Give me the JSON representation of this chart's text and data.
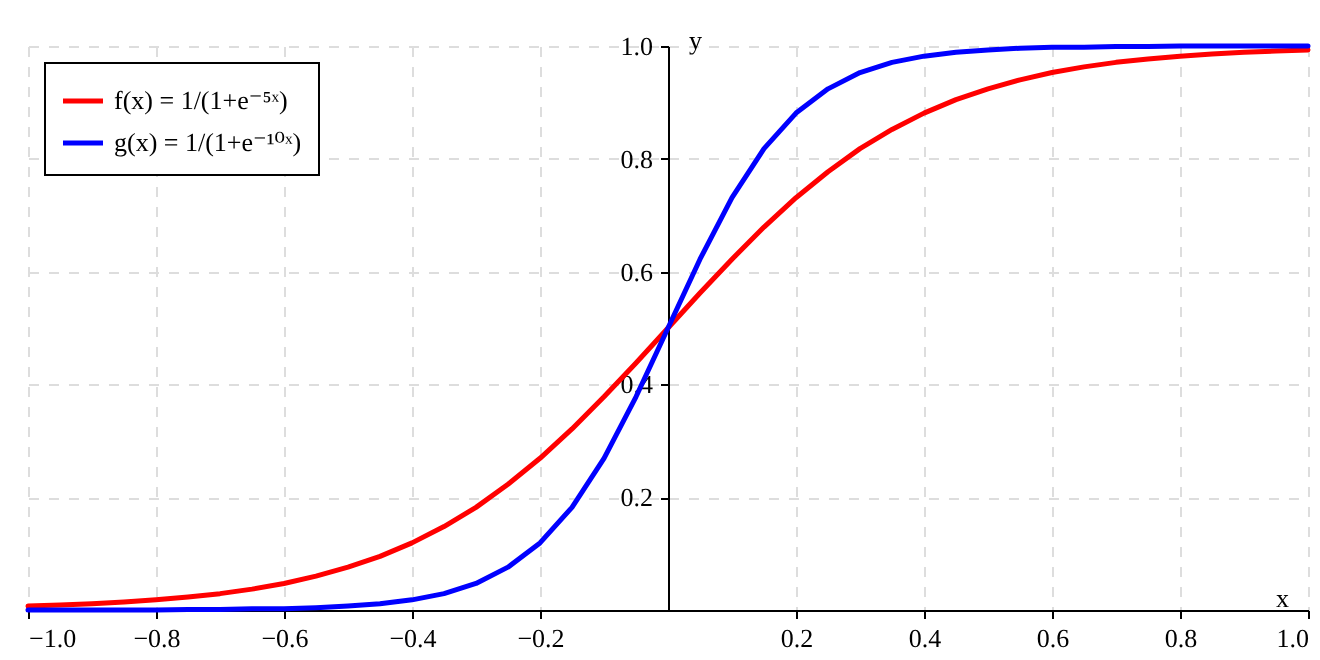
{
  "chart_data": {
    "type": "line",
    "xlabel": "x",
    "ylabel": "y",
    "x": [
      -1,
      -0.95,
      -0.9,
      -0.85,
      -0.8,
      -0.75,
      -0.7,
      -0.65,
      -0.6,
      -0.55,
      -0.5,
      -0.45,
      -0.4,
      -0.35,
      -0.3,
      -0.25,
      -0.2,
      -0.15,
      -0.1,
      -0.05,
      0,
      0.05,
      0.1,
      0.15,
      0.2,
      0.25,
      0.3,
      0.35,
      0.4,
      0.45,
      0.5,
      0.55,
      0.6,
      0.65,
      0.7,
      0.75,
      0.8,
      0.85,
      0.9,
      0.95,
      1
    ],
    "series": [
      {
        "name": "f(x) = 1/(1+e⁻⁵ˣ)",
        "color": "#ff0000",
        "values": [
          0.007,
          0.009,
          0.011,
          0.014,
          0.018,
          0.023,
          0.029,
          0.037,
          0.047,
          0.06,
          0.076,
          0.095,
          0.119,
          0.148,
          0.182,
          0.223,
          0.269,
          0.321,
          0.378,
          0.438,
          0.5,
          0.562,
          0.622,
          0.679,
          0.731,
          0.777,
          0.818,
          0.852,
          0.881,
          0.905,
          0.924,
          0.94,
          0.953,
          0.963,
          0.971,
          0.977,
          0.982,
          0.986,
          0.989,
          0.991,
          0.993
        ]
      },
      {
        "name": "g(x) = 1/(1+e⁻¹⁰ˣ)",
        "color": "#0000ff",
        "values": [
          0.0,
          0.0,
          0.0,
          0.0,
          0.0,
          0.001,
          0.001,
          0.002,
          0.002,
          0.004,
          0.007,
          0.011,
          0.018,
          0.029,
          0.047,
          0.076,
          0.119,
          0.182,
          0.269,
          0.378,
          0.5,
          0.622,
          0.731,
          0.818,
          0.881,
          0.924,
          0.953,
          0.971,
          0.982,
          0.989,
          0.993,
          0.996,
          0.998,
          0.998,
          0.999,
          0.999,
          1.0,
          1.0,
          1.0,
          1.0,
          1.0
        ]
      }
    ],
    "xlim": [
      -1,
      1
    ],
    "xticks": [
      {
        "value": -1,
        "label": "−1.0"
      },
      {
        "value": -0.8,
        "label": "−0.8"
      },
      {
        "value": -0.6,
        "label": "−0.6"
      },
      {
        "value": -0.4,
        "label": "−0.4"
      },
      {
        "value": -0.2,
        "label": "−0.2"
      },
      {
        "value": 0.2,
        "label": "0.2"
      },
      {
        "value": 0.4,
        "label": "0.4"
      },
      {
        "value": 0.6,
        "label": "0.6"
      },
      {
        "value": 0.8,
        "label": "0.8"
      },
      {
        "value": 1,
        "label": "1.0"
      }
    ],
    "ylim": [
      0,
      1
    ],
    "yticks": [
      0.2,
      0.4,
      0.6,
      0.8,
      {
        "value": 1,
        "label": "1.0"
      }
    ],
    "grid": true,
    "legend": "top left",
    "marker": "none",
    "line_style": "solid"
  }
}
